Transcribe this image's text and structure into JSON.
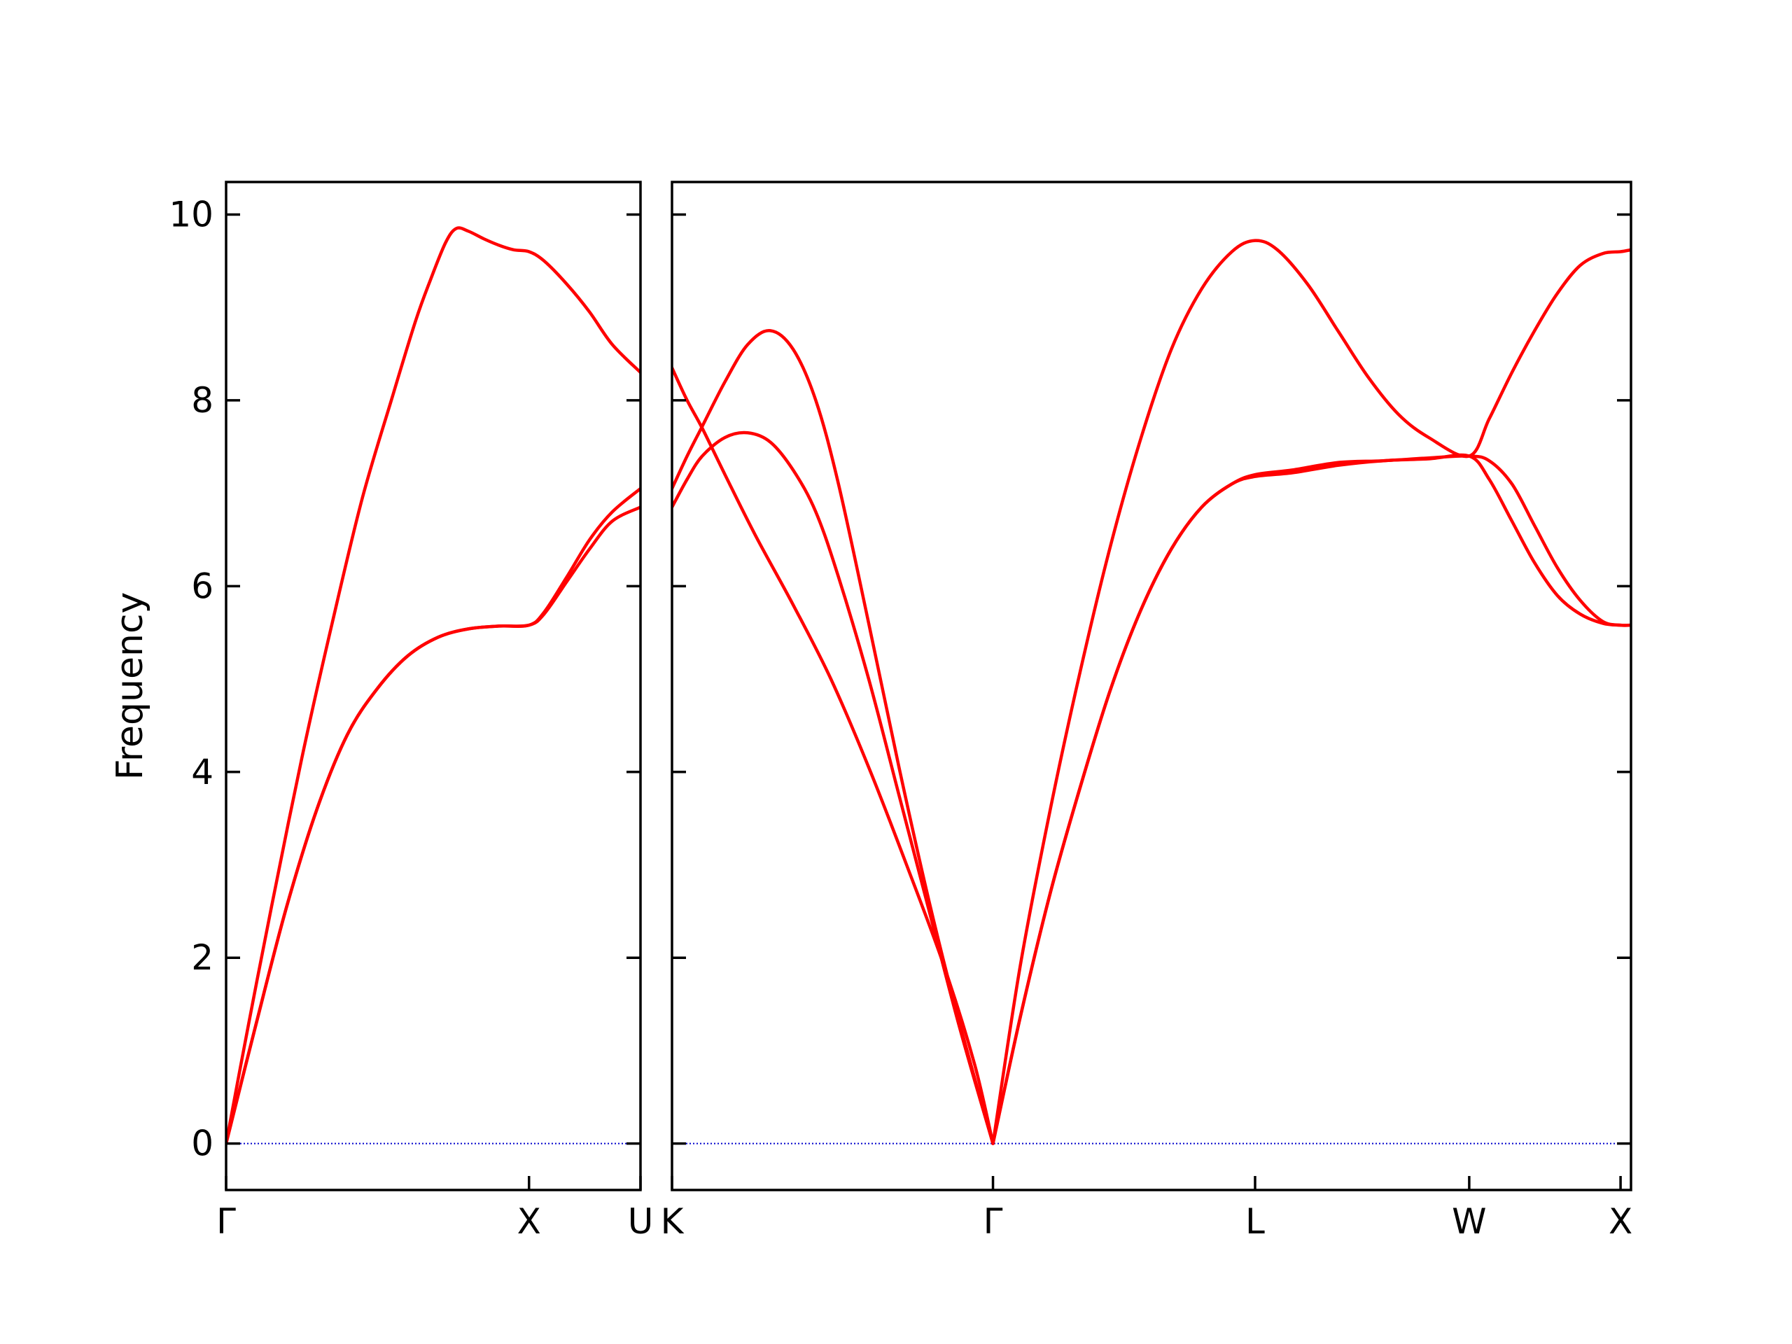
{
  "chart_data": {
    "type": "line",
    "ylabel": "Frequency",
    "ylim": [
      -0.5,
      10.35
    ],
    "yticks": [
      0,
      2,
      4,
      6,
      8,
      10
    ],
    "ytick_labels": [
      "0",
      "2",
      "4",
      "6",
      "8",
      "10"
    ],
    "grid": false,
    "line_color": "#ff0000",
    "zero_line_color": "#0000cc",
    "panels": [
      {
        "id": "left",
        "xlim": [
          0,
          2.736
        ],
        "ticks": [
          {
            "x": 0,
            "label": "Γ"
          },
          {
            "x": 2.0,
            "label": "X"
          },
          {
            "x": 2.736,
            "label": "U"
          }
        ],
        "series": [
          {
            "points": [
              [
                0,
                0
              ],
              [
                0.15,
                1.3
              ],
              [
                0.3,
                2.55
              ],
              [
                0.5,
                4.15
              ],
              [
                0.7,
                5.6
              ],
              [
                0.9,
                6.95
              ],
              [
                1.1,
                8.05
              ],
              [
                1.25,
                8.85
              ],
              [
                1.35,
                9.3
              ],
              [
                1.45,
                9.7
              ],
              [
                1.52,
                9.85
              ],
              [
                1.6,
                9.82
              ],
              [
                1.7,
                9.74
              ],
              [
                1.8,
                9.67
              ],
              [
                1.9,
                9.62
              ],
              [
                2.0,
                9.6
              ],
              [
                2.1,
                9.5
              ],
              [
                2.25,
                9.25
              ],
              [
                2.4,
                8.95
              ],
              [
                2.55,
                8.6
              ],
              [
                2.736,
                8.3
              ]
            ]
          },
          {
            "points": [
              [
                0,
                0
              ],
              [
                0.2,
                1.3
              ],
              [
                0.4,
                2.55
              ],
              [
                0.6,
                3.6
              ],
              [
                0.8,
                4.4
              ],
              [
                1.0,
                4.9
              ],
              [
                1.2,
                5.25
              ],
              [
                1.4,
                5.45
              ],
              [
                1.6,
                5.54
              ],
              [
                1.8,
                5.57
              ],
              [
                2.0,
                5.58
              ],
              [
                2.1,
                5.7
              ],
              [
                2.25,
                6.05
              ],
              [
                2.4,
                6.4
              ],
              [
                2.55,
                6.7
              ],
              [
                2.736,
                6.85
              ]
            ]
          },
          {
            "points": [
              [
                0,
                0
              ],
              [
                0.2,
                1.3
              ],
              [
                0.4,
                2.55
              ],
              [
                0.6,
                3.6
              ],
              [
                0.8,
                4.4
              ],
              [
                1.0,
                4.9
              ],
              [
                1.2,
                5.25
              ],
              [
                1.4,
                5.45
              ],
              [
                1.6,
                5.54
              ],
              [
                1.8,
                5.57
              ],
              [
                2.0,
                5.58
              ],
              [
                2.1,
                5.72
              ],
              [
                2.25,
                6.1
              ],
              [
                2.4,
                6.5
              ],
              [
                2.55,
                6.8
              ],
              [
                2.736,
                7.05
              ]
            ]
          }
        ]
      },
      {
        "id": "right",
        "xlim": [
          0,
          6.337
        ],
        "ticks": [
          {
            "x": 0,
            "label": "K"
          },
          {
            "x": 2.121,
            "label": "Γ"
          },
          {
            "x": 3.853,
            "label": "L"
          },
          {
            "x": 5.268,
            "label": "W"
          },
          {
            "x": 6.268,
            "label": "X"
          }
        ],
        "series": [
          {
            "points": [
              [
                0,
                8.35
              ],
              [
                0.1,
                8.0
              ],
              [
                0.2,
                7.7
              ],
              [
                0.35,
                7.2
              ],
              [
                0.55,
                6.55
              ],
              [
                0.8,
                5.8
              ],
              [
                1.05,
                5.0
              ],
              [
                1.3,
                4.05
              ],
              [
                1.55,
                3.0
              ],
              [
                1.8,
                1.9
              ],
              [
                2.0,
                0.85
              ],
              [
                2.121,
                0
              ]
            ]
          },
          {
            "points": [
              [
                0,
                6.85
              ],
              [
                0.1,
                7.15
              ],
              [
                0.2,
                7.4
              ],
              [
                0.35,
                7.6
              ],
              [
                0.5,
                7.65
              ],
              [
                0.65,
                7.55
              ],
              [
                0.8,
                7.25
              ],
              [
                0.95,
                6.8
              ],
              [
                1.1,
                6.1
              ],
              [
                1.3,
                5.0
              ],
              [
                1.5,
                3.75
              ],
              [
                1.7,
                2.5
              ],
              [
                1.9,
                1.25
              ],
              [
                2.121,
                0
              ]
            ]
          },
          {
            "points": [
              [
                0,
                7.05
              ],
              [
                0.1,
                7.4
              ],
              [
                0.2,
                7.72
              ],
              [
                0.35,
                8.2
              ],
              [
                0.5,
                8.6
              ],
              [
                0.65,
                8.75
              ],
              [
                0.8,
                8.55
              ],
              [
                0.95,
                8.0
              ],
              [
                1.1,
                7.1
              ],
              [
                1.3,
                5.6
              ],
              [
                1.5,
                4.05
              ],
              [
                1.7,
                2.6
              ],
              [
                1.9,
                1.3
              ],
              [
                2.121,
                0
              ]
            ]
          },
          {
            "points": [
              [
                2.121,
                0
              ],
              [
                2.3,
                1.35
              ],
              [
                2.5,
                2.7
              ],
              [
                2.7,
                3.85
              ],
              [
                2.9,
                4.9
              ],
              [
                3.1,
                5.75
              ],
              [
                3.3,
                6.4
              ],
              [
                3.5,
                6.85
              ],
              [
                3.7,
                7.1
              ],
              [
                3.853,
                7.18
              ],
              [
                4.1,
                7.22
              ],
              [
                4.4,
                7.3
              ],
              [
                4.7,
                7.35
              ],
              [
                5.0,
                7.37
              ],
              [
                5.268,
                7.4
              ],
              [
                5.4,
                7.15
              ],
              [
                5.55,
                6.7
              ],
              [
                5.7,
                6.25
              ],
              [
                5.85,
                5.9
              ],
              [
                6.0,
                5.7
              ],
              [
                6.15,
                5.6
              ],
              [
                6.268,
                5.58
              ],
              [
                6.337,
                5.58
              ]
            ]
          },
          {
            "points": [
              [
                2.121,
                0
              ],
              [
                2.3,
                1.35
              ],
              [
                2.5,
                2.7
              ],
              [
                2.7,
                3.85
              ],
              [
                2.9,
                4.9
              ],
              [
                3.1,
                5.75
              ],
              [
                3.3,
                6.4
              ],
              [
                3.5,
                6.85
              ],
              [
                3.7,
                7.1
              ],
              [
                3.853,
                7.2
              ],
              [
                4.1,
                7.25
              ],
              [
                4.4,
                7.33
              ],
              [
                4.7,
                7.35
              ],
              [
                5.0,
                7.38
              ],
              [
                5.268,
                7.4
              ],
              [
                5.4,
                7.35
              ],
              [
                5.55,
                7.1
              ],
              [
                5.7,
                6.65
              ],
              [
                5.85,
                6.2
              ],
              [
                6.0,
                5.85
              ],
              [
                6.15,
                5.62
              ],
              [
                6.268,
                5.58
              ],
              [
                6.337,
                5.58
              ]
            ]
          },
          {
            "points": [
              [
                2.121,
                0
              ],
              [
                2.3,
                1.9
              ],
              [
                2.5,
                3.6
              ],
              [
                2.7,
                5.1
              ],
              [
                2.9,
                6.45
              ],
              [
                3.1,
                7.6
              ],
              [
                3.3,
                8.55
              ],
              [
                3.5,
                9.2
              ],
              [
                3.7,
                9.6
              ],
              [
                3.853,
                9.72
              ],
              [
                4.0,
                9.62
              ],
              [
                4.2,
                9.25
              ],
              [
                4.4,
                8.75
              ],
              [
                4.6,
                8.25
              ],
              [
                4.8,
                7.85
              ],
              [
                5.0,
                7.6
              ],
              [
                5.268,
                7.4
              ],
              [
                5.4,
                7.8
              ],
              [
                5.55,
                8.3
              ],
              [
                5.7,
                8.75
              ],
              [
                5.85,
                9.15
              ],
              [
                6.0,
                9.45
              ],
              [
                6.15,
                9.58
              ],
              [
                6.268,
                9.6
              ],
              [
                6.337,
                9.62
              ]
            ]
          }
        ]
      }
    ]
  }
}
